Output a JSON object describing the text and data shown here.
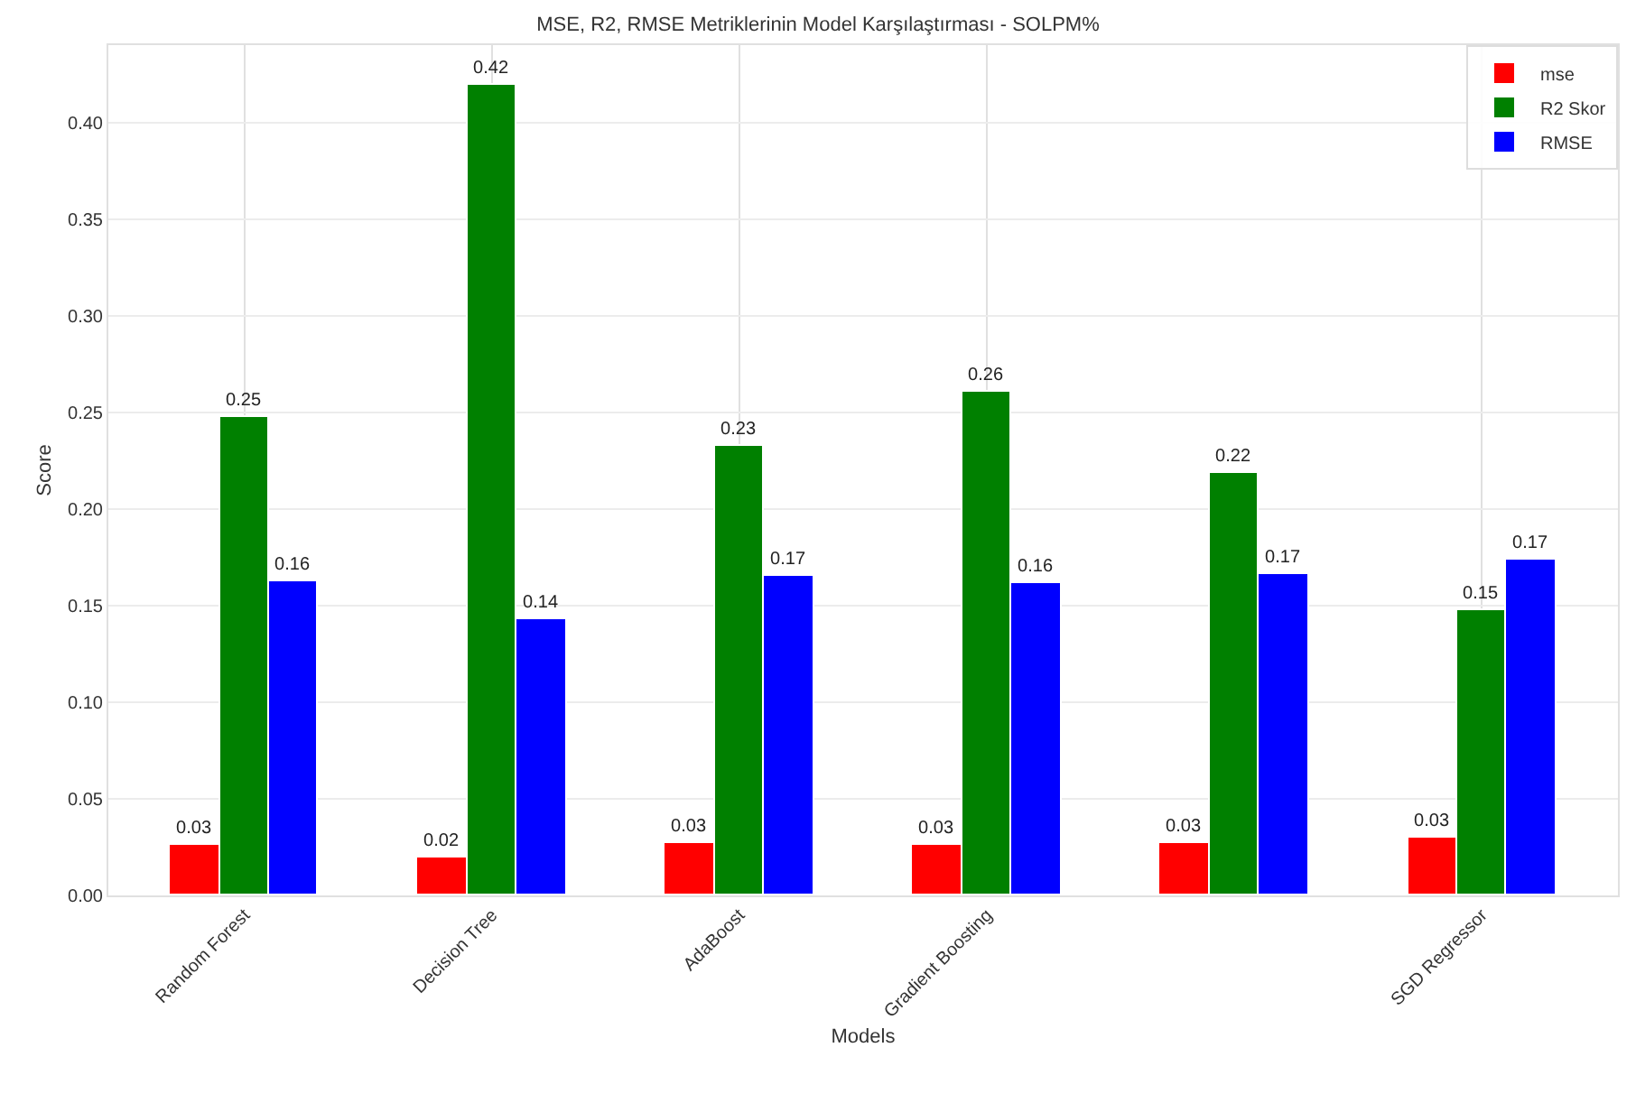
{
  "chart_data": {
    "type": "bar",
    "title": "MSE, R2, RMSE Metriklerinin Model Karşılaştırması - SOLPM%",
    "xlabel": "Models",
    "ylabel": "Score",
    "categories": [
      "Random Forest",
      "Decision Tree",
      "AdaBoost",
      "Gradient Boosting",
      null,
      "SGD Regressor"
    ],
    "series": [
      {
        "name": "mse",
        "color": "#ff0000",
        "values": [
          0.026,
          0.02,
          0.027,
          0.026,
          0.027,
          0.03
        ],
        "value_labels": [
          "0.03",
          "0.02",
          "0.03",
          "0.03",
          "0.03",
          "0.03"
        ]
      },
      {
        "name": "R2 Skor",
        "color": "#008000",
        "values": [
          0.248,
          0.419,
          0.233,
          0.261,
          0.219,
          0.148
        ],
        "value_labels": [
          "0.25",
          "0.42",
          "0.23",
          "0.26",
          "0.22",
          "0.15"
        ]
      },
      {
        "name": "RMSE",
        "color": "#0000ff",
        "values": [
          0.163,
          0.143,
          0.165,
          0.162,
          0.166,
          0.174
        ],
        "value_labels": [
          "0.16",
          "0.14",
          "0.17",
          "0.16",
          "0.17",
          "0.17"
        ]
      }
    ],
    "ylim": [
      0,
      0.44
    ],
    "yticks": [
      {
        "value": 0,
        "label": "0.00"
      },
      {
        "value": 0.05,
        "label": "0.05"
      },
      {
        "value": 0.1,
        "label": "0.10"
      },
      {
        "value": 0.15,
        "label": "0.15"
      },
      {
        "value": 0.2,
        "label": "0.20"
      },
      {
        "value": 0.25,
        "label": "0.25"
      },
      {
        "value": 0.3,
        "label": "0.30"
      },
      {
        "value": 0.35,
        "label": "0.35"
      },
      {
        "value": 0.4,
        "label": "0.40"
      }
    ],
    "grid": true,
    "legend": "top right"
  }
}
